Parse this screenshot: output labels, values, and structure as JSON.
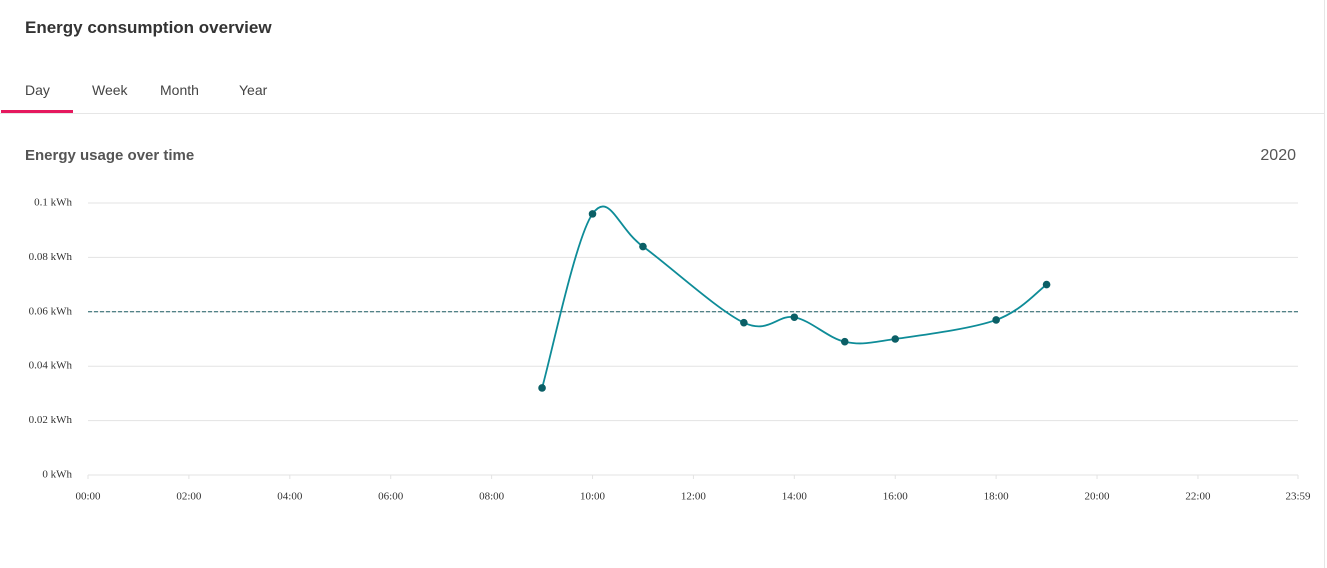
{
  "header": {
    "title": "Energy consumption overview"
  },
  "tabs": [
    "Day",
    "Week",
    "Month",
    "Year"
  ],
  "period": "2020",
  "chart_data": {
    "type": "line",
    "title": "Energy usage over time",
    "x": [
      540,
      600,
      660,
      780,
      840,
      900,
      960,
      1080,
      1140
    ],
    "series": [
      {
        "name": "Energy usage",
        "color": "#0e8c98",
        "values": [
          0.032,
          0.096,
          0.084,
          0.056,
          0.058,
          0.049,
          0.05,
          0.057,
          0.07
        ]
      }
    ],
    "xlim": [
      0,
      1439
    ],
    "xticks": [
      {
        "value": 0,
        "label": "00:00"
      },
      {
        "value": 120,
        "label": "02:00"
      },
      {
        "value": 240,
        "label": "04:00"
      },
      {
        "value": 360,
        "label": "06:00"
      },
      {
        "value": 480,
        "label": "08:00"
      },
      {
        "value": 600,
        "label": "10:00"
      },
      {
        "value": 720,
        "label": "12:00"
      },
      {
        "value": 840,
        "label": "14:00"
      },
      {
        "value": 960,
        "label": "16:00"
      },
      {
        "value": 1080,
        "label": "18:00"
      },
      {
        "value": 1200,
        "label": "20:00"
      },
      {
        "value": 1320,
        "label": "22:00"
      },
      {
        "value": 1439,
        "label": "23:59"
      }
    ],
    "ylim": [
      0,
      0.1
    ],
    "yticks": [
      {
        "value": 0,
        "label": "0 kWh"
      },
      {
        "value": 0.02,
        "label": "0.02 kWh"
      },
      {
        "value": 0.04,
        "label": "0.04 kWh"
      },
      {
        "value": 0.06,
        "label": "0.06 kWh"
      },
      {
        "value": 0.08,
        "label": "0.08 kWh"
      },
      {
        "value": 0.1,
        "label": "0.1 kWh"
      }
    ],
    "reference_line": 0.06,
    "reference_color": "#1f5f66",
    "grid": true
  }
}
